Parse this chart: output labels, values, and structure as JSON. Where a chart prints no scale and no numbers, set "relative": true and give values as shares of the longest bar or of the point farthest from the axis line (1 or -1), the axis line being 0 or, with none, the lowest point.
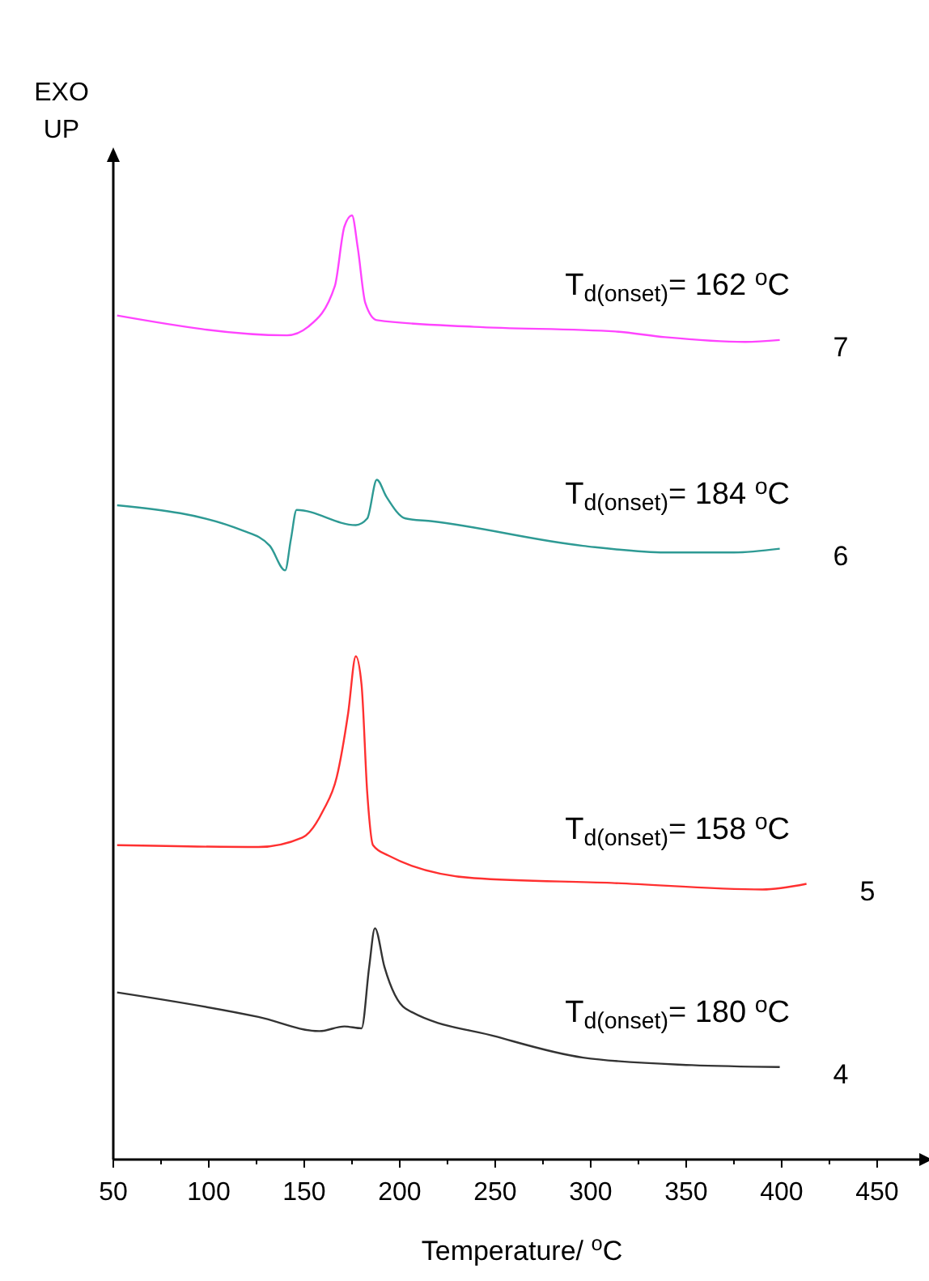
{
  "chart_data": {
    "type": "line",
    "relative": true,
    "xlabel": "Temperature/ $^{o}$C",
    "ylabel": "EXO UP",
    "xlim": [
      50,
      478
    ],
    "xticks": [
      50,
      {
        "value": 75,
        "label": null
      },
      100,
      {
        "value": 125,
        "label": null
      },
      150,
      {
        "value": 175,
        "label": null
      },
      200,
      {
        "value": 225,
        "label": null
      },
      250,
      {
        "value": 275,
        "label": null
      },
      300,
      {
        "value": 325,
        "label": null
      },
      350,
      {
        "value": 375,
        "label": null
      },
      400,
      {
        "value": 425,
        "label": null
      },
      450
    ],
    "marker": "none",
    "line_style": "solid",
    "series": [
      {
        "name": "7",
        "color": "#ff44ff",
        "x": [
          52,
          141,
          152,
          166,
          171,
          175,
          178,
          182,
          188,
          239,
          313,
          339,
          381,
          399
        ],
        "values": [
          0.894,
          0.873,
          0.882,
          0.925,
          0.988,
          1.0,
          0.966,
          0.907,
          0.889,
          0.882,
          0.877,
          0.871,
          0.866,
          0.868
        ]
      },
      {
        "name": "6",
        "color": "#2e9a94",
        "x": [
          52,
          118,
          132,
          140,
          143,
          146,
          177,
          183,
          188,
          193,
          203,
          217,
          296,
          339,
          375,
          399
        ],
        "values": [
          0.693,
          0.666,
          0.65,
          0.624,
          0.657,
          0.688,
          0.672,
          0.679,
          0.72,
          0.702,
          0.679,
          0.676,
          0.65,
          0.643,
          0.643,
          0.647
        ]
      },
      {
        "name": "5",
        "color": "#ff3030",
        "x": [
          52,
          126,
          149,
          160,
          167,
          173,
          177,
          180,
          183,
          186,
          194,
          239,
          311,
          390,
          413
        ],
        "values": [
          0.333,
          0.331,
          0.341,
          0.37,
          0.405,
          0.473,
          0.533,
          0.503,
          0.388,
          0.333,
          0.322,
          0.298,
          0.293,
          0.286,
          0.292
        ]
      },
      {
        "name": "4",
        "color": "#333333",
        "x": [
          52,
          126,
          158,
          171,
          180,
          184,
          187,
          192,
          203,
          251,
          296,
          353,
          399
        ],
        "values": [
          0.177,
          0.151,
          0.136,
          0.141,
          0.139,
          0.204,
          0.245,
          0.204,
          0.16,
          0.13,
          0.108,
          0.1,
          0.098
        ]
      }
    ],
    "annotations": [
      "T$_{d(onset)}$= 162 $^{o}$C",
      "T$_{d(onset)}$= 184 $^{o}$C",
      "T$_{d(onset)}$= 158 $^{o}$C",
      "T$_{d(onset)}$= 180 $^{o}$C"
    ]
  }
}
